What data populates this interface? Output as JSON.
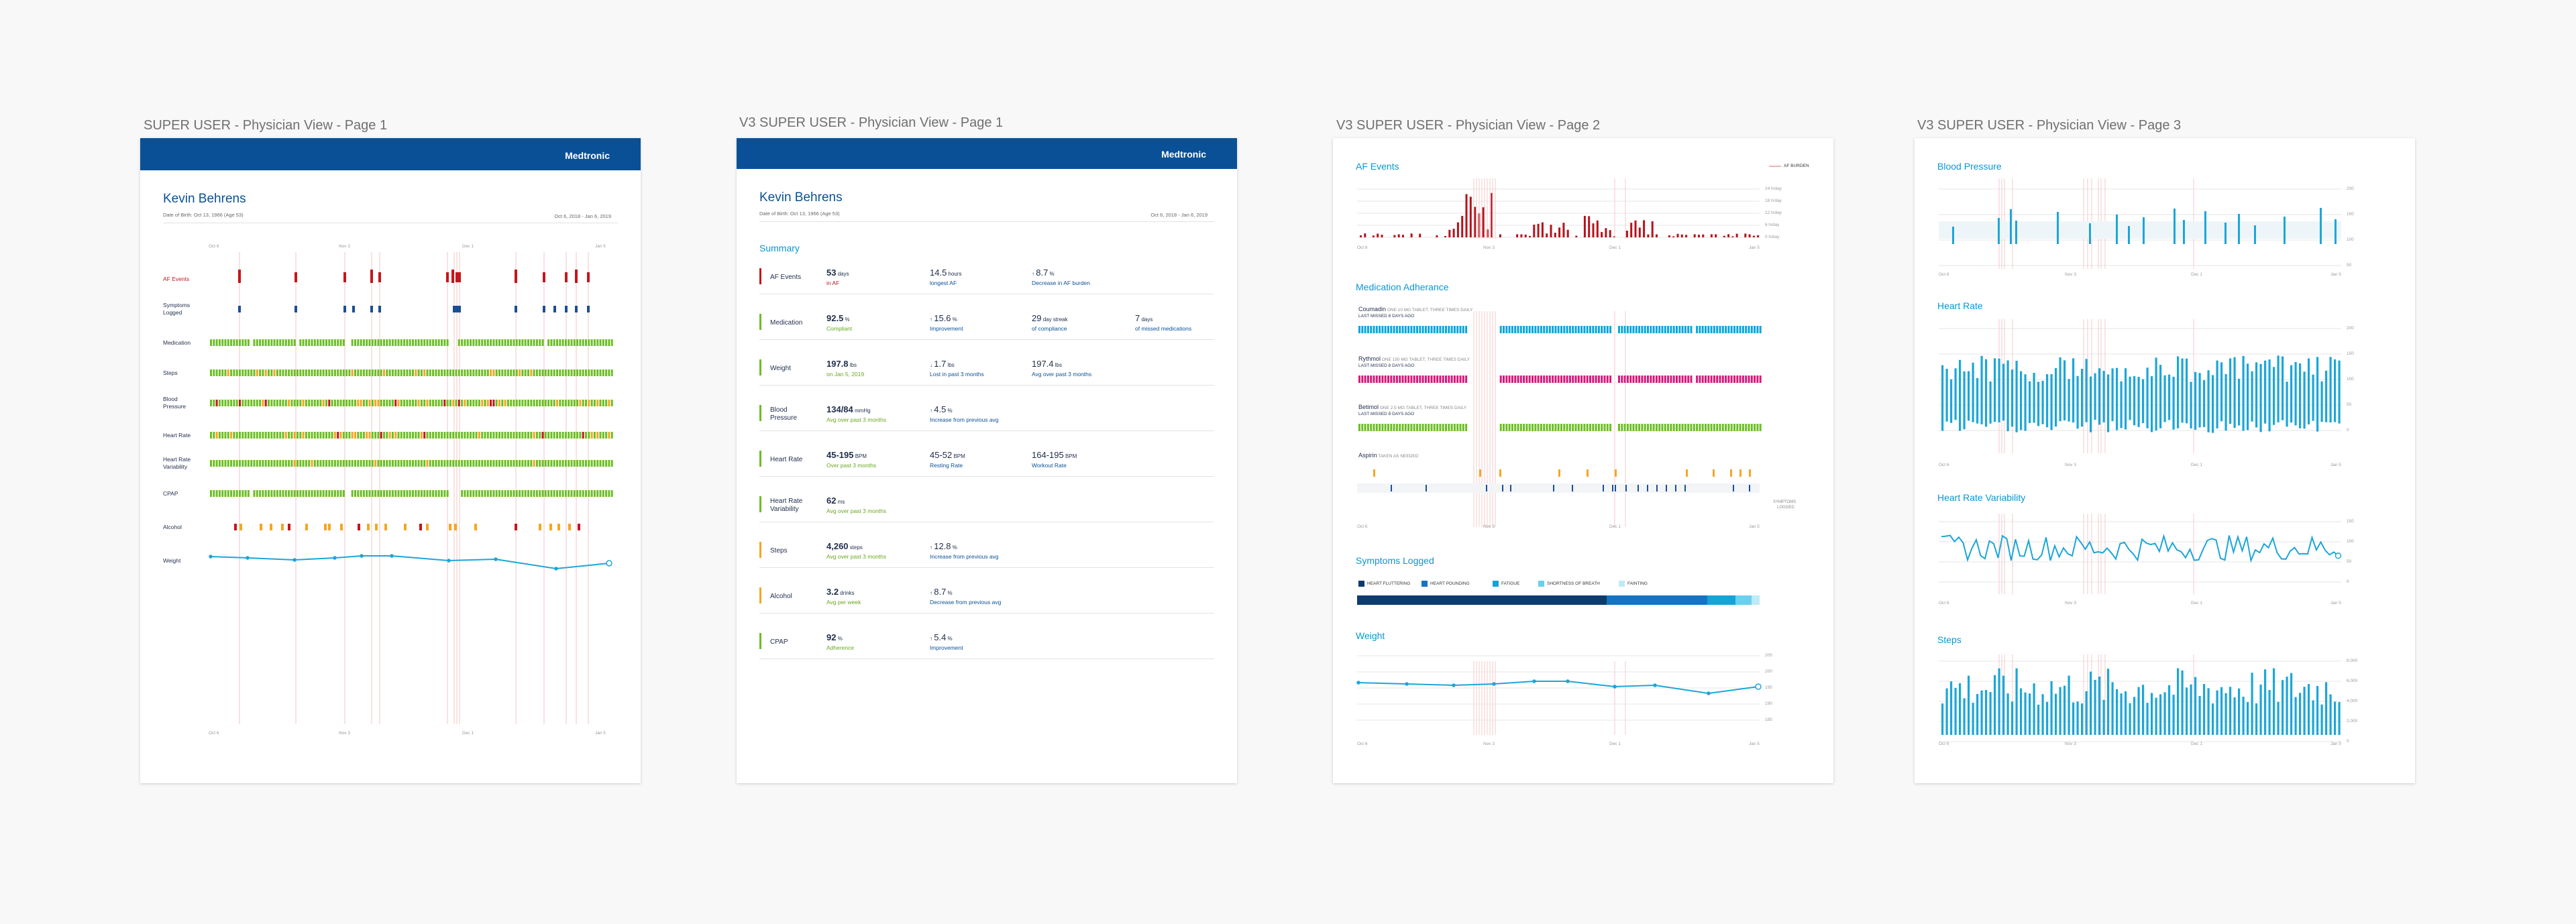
{
  "artboards": [
    {
      "title": "SUPER USER - Physician View - Page 1"
    },
    {
      "title": "V3 SUPER USER - Physician View - Page 1"
    },
    {
      "title": "V3 SUPER USER - Physician View - Page 2"
    },
    {
      "title": "V3 SUPER USER - Physician View - Page 3"
    }
  ],
  "brand": {
    "logo": "Medtronic",
    "color": "#0a5096"
  },
  "patient": {
    "name": "Kevin Behrens",
    "dob": "Date of Birth: Oct 13, 1966 (Age 53)",
    "range": "Oct 6, 2018 - Jan 6, 2019"
  },
  "page1": {
    "ticks": [
      "Oct 6",
      "Nov 3",
      "Dec 1",
      "Jan 5"
    ],
    "rows": [
      {
        "label": "AF Events",
        "color": "#c4161c"
      },
      {
        "label": "Symptoms\nLogged",
        "color": "#1a4e96"
      },
      {
        "label": "Medication",
        "color": "#6dbe24"
      },
      {
        "label": "Steps",
        "color": "#6dbe24"
      },
      {
        "label": "Blood\nPressure",
        "color": "#6dbe24"
      },
      {
        "label": "Heart Rate",
        "color": "#6dbe24"
      },
      {
        "label": "Heart Rate\nVariability",
        "color": "#6dbe24"
      },
      {
        "label": "CPAP",
        "color": "#6dbe24"
      },
      {
        "label": "Alcohol",
        "color": "#f5a623"
      },
      {
        "label": "Weight",
        "color": "#1ba6d9"
      }
    ]
  },
  "summary": {
    "title": "Summary",
    "rows": [
      {
        "label": "AF Events",
        "color": "#c4161c",
        "metrics": [
          {
            "value": "53",
            "unit": "days",
            "sub": "in AF",
            "subc": "red"
          },
          {
            "value": "14.5",
            "unit": "hours",
            "sub": "longest AF",
            "light": true
          },
          {
            "arrow": "↑",
            "value": "8.7",
            "unit": "%",
            "sub": "Decrease in AF burden",
            "light": true
          }
        ]
      },
      {
        "label": "Medication",
        "color": "#6dbe24",
        "metrics": [
          {
            "value": "92.5",
            "unit": "%",
            "sub": "Compliant",
            "subc": "green"
          },
          {
            "arrow": "↑",
            "value": "15.6",
            "unit": "%",
            "sub": "Improvement",
            "light": true
          },
          {
            "value": "29",
            "unit": "day streak",
            "sub": "of compliance",
            "light": true
          },
          {
            "value": "7",
            "unit": "days",
            "sub": "of missed medications",
            "light": true
          }
        ]
      },
      {
        "label": "Weight",
        "color": "#6dbe24",
        "metrics": [
          {
            "value": "197.8",
            "unit": "lbs",
            "sub": "on Jan 5, 2019",
            "subc": "green"
          },
          {
            "arrow": "↓",
            "value": "1.7",
            "unit": "lbs",
            "sub": "Lost in past 3 months",
            "light": true
          },
          {
            "value": "197.4",
            "unit": "lbs",
            "sub": "Avg over past 3 months",
            "light": true
          }
        ]
      },
      {
        "label": "Blood\nPressure",
        "color": "#6dbe24",
        "metrics": [
          {
            "value": "134/84",
            "unit": "mmHg",
            "sub": "Avg over past 3 months",
            "subc": "green"
          },
          {
            "arrow": "↑",
            "value": "4.5",
            "unit": "%",
            "sub": "Increase from previous avg",
            "light": true
          }
        ]
      },
      {
        "label": "Heart Rate",
        "color": "#6dbe24",
        "metrics": [
          {
            "value": "45-195",
            "unit": "BPM",
            "sub": "Over past 3 months",
            "subc": "green"
          },
          {
            "value": "45-52",
            "unit": "BPM",
            "sub": "Resting Rate",
            "light": true
          },
          {
            "value": "164-195",
            "unit": "BPM",
            "sub": "Workout Rate",
            "light": true
          }
        ]
      },
      {
        "label": "Heart Rate\nVariability",
        "color": "#6dbe24",
        "metrics": [
          {
            "value": "62",
            "unit": "ms",
            "sub": "Avg over past 3 months",
            "subc": "green"
          }
        ]
      },
      {
        "label": "Steps",
        "color": "#f5a623",
        "metrics": [
          {
            "value": "4,260",
            "unit": "steps",
            "sub": "Avg over past 3 months",
            "subc": "green"
          },
          {
            "arrow": "↑",
            "value": "12.8",
            "unit": "%",
            "sub": "Increase from previous avg",
            "light": true
          }
        ]
      },
      {
        "label": "Alcohol",
        "color": "#f5a623",
        "metrics": [
          {
            "value": "3.2",
            "unit": "drinks",
            "sub": "Avg per week",
            "subc": "green"
          },
          {
            "arrow": "↑",
            "value": "8.7",
            "unit": "%",
            "sub": "Decrease from previous avg",
            "light": true
          }
        ]
      },
      {
        "label": "CPAP",
        "color": "#6dbe24",
        "metrics": [
          {
            "value": "92",
            "unit": "%",
            "sub": "Adherence",
            "subc": "green"
          },
          {
            "arrow": "↑",
            "value": "5.4",
            "unit": "%",
            "sub": "Improvement",
            "light": true
          }
        ]
      }
    ]
  },
  "page3v": {
    "af": {
      "title": "AF Events",
      "legend": "AF BURDEN",
      "yticks": [
        "24 h/day",
        "18 h/day",
        "12 h/day",
        "6 h/day",
        "0 h/day"
      ]
    },
    "medication": {
      "title": "Medication Adherance",
      "meds": [
        {
          "name": "Coumadin",
          "sub": "ONE 10 MG TABLET, THREE TIMES DAILY",
          "note": "LAST MISSED 8 DAYS AGO",
          "color": "#12a3d9"
        },
        {
          "name": "Rythmol",
          "sub": "ONE 150 MG TABLET, THREE TIMES DAILY",
          "note": "LAST MISSED 8 DAYS AGO",
          "color": "#d8187a"
        },
        {
          "name": "Betimol",
          "sub": "ONE 2.5 MG TABLET, THREE TIMES DAILY",
          "note": "LAST MISSED 8 DAYS AGO",
          "color": "#6dbe24"
        },
        {
          "name": "Aspirin",
          "sub": "TAKEN AS NEEDED",
          "note": "",
          "color": "#f5a623"
        }
      ],
      "legend": [
        "SYMPTOMS",
        "LOGGED"
      ]
    },
    "symptoms": {
      "title": "Symptoms Logged",
      "legend": [
        {
          "label": "HEART FLUTTERING",
          "color": "#0d3b6e",
          "value": 0.62
        },
        {
          "label": "HEART POUNDING",
          "color": "#1473c4",
          "value": 0.25
        },
        {
          "label": "FATIGUE",
          "color": "#17a2d8",
          "value": 0.07
        },
        {
          "label": "SHORTNESS OF BREATH",
          "color": "#6ad0ee",
          "value": 0.04
        },
        {
          "label": "FAINTING",
          "color": "#bfeaf7",
          "value": 0.02
        }
      ]
    },
    "weight": {
      "title": "Weight",
      "yticks": [
        "205",
        "200",
        "195",
        "190",
        "185"
      ]
    }
  },
  "page4": {
    "bp": {
      "title": "Blood Pressure",
      "yticks": [
        "200",
        "150",
        "100",
        "50"
      ]
    },
    "hr": {
      "title": "Heart Rate",
      "yticks": [
        "200",
        "150",
        "100",
        "50",
        "0"
      ]
    },
    "hrv": {
      "title": "Heart Rate Variability",
      "yticks": [
        "150",
        "100",
        "50",
        "0"
      ]
    },
    "steps": {
      "title": "Steps",
      "yticks": [
        "8,000",
        "6,000",
        "4,000",
        "2,000",
        "0"
      ]
    }
  },
  "colors": {
    "accent": "#0a96d4",
    "navy": "#1e2d4a",
    "af": "#c4161c",
    "grid": "#e6e6e6"
  }
}
